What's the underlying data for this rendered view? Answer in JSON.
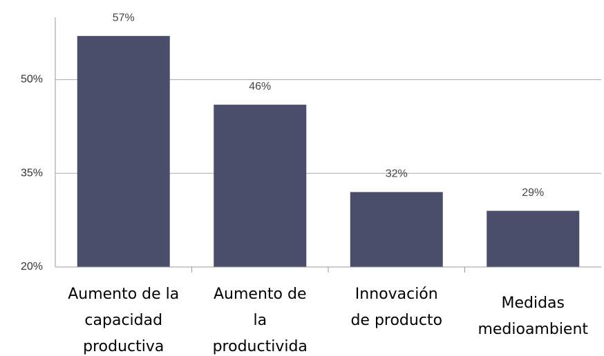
{
  "chart_data": {
    "type": "bar",
    "categories": [
      [
        "Aumento de la",
        "capacidad",
        "productiva"
      ],
      [
        "Aumento de",
        "la",
        "productivida"
      ],
      [
        "Innovación",
        "de producto"
      ],
      [
        "Medidas",
        "medioambient"
      ]
    ],
    "values": [
      57,
      46,
      32,
      29
    ],
    "value_labels": [
      "57%",
      "46%",
      "32%",
      "29%"
    ],
    "color": "#4a4e6b",
    "ylim": [
      20,
      60
    ],
    "yticks": [
      {
        "value": 20,
        "label": "20%"
      },
      {
        "value": 35,
        "label": "35%"
      },
      {
        "value": 50,
        "label": "50%"
      }
    ],
    "grid": true
  }
}
